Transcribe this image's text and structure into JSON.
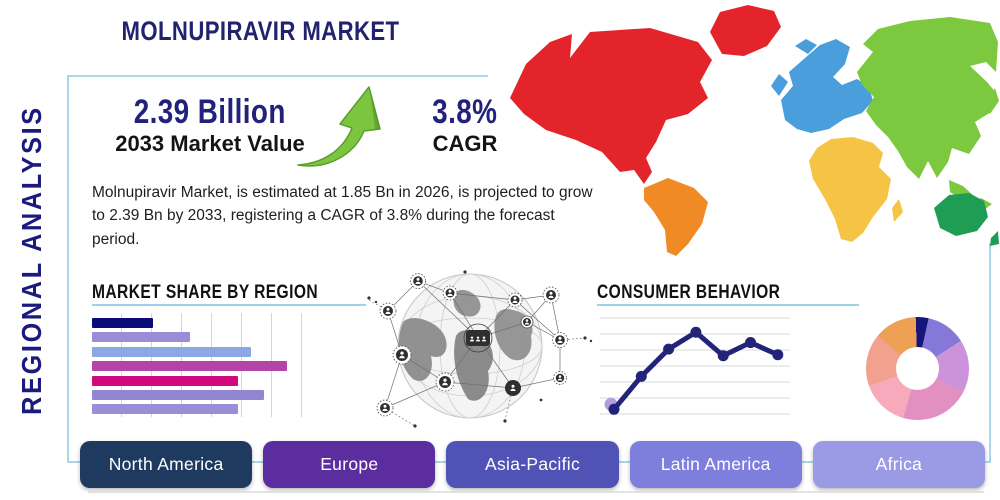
{
  "page": {
    "title": "MOLNUPIRAVIR MARKET",
    "side_title": "REGIONAL ANALYSIS"
  },
  "stats": {
    "market_value": "2.39 Billion",
    "market_value_label": "2033 Market Value",
    "cagr_value": "3.8%",
    "cagr_label": "CAGR",
    "arrow_color": "#7cc63f",
    "arrow_edge_color": "#5a9e2f"
  },
  "description": "Molnupiravir Market, is estimated at 1.85 Bn in 2026, is projected to grow to 2.39 Bn by 2033, registering a CAGR of 3.8% during the forecast period.",
  "sections": {
    "market_share": "MARKET SHARE BY REGION",
    "consumer_behavior": "CONSUMER BEHAVIOR"
  },
  "colors": {
    "title_navy": "#22226e",
    "stat_navy": "#22227d",
    "box_border": "#a9d7e8",
    "underline": "#9fd2e6"
  },
  "map": {
    "north_america": "#e3242b",
    "greenland": "#e3242b",
    "south_america": "#f08a24",
    "europe": "#4a9edb",
    "africa": "#f6c445",
    "asia": "#7cc83f",
    "oceania": "#1f9d54"
  },
  "buttons": [
    {
      "label": "North America",
      "color": "#1e3a5f"
    },
    {
      "label": "Europe",
      "color": "#5c2d9e"
    },
    {
      "label": "Asia-Pacific",
      "color": "#5053b5"
    },
    {
      "label": "Latin America",
      "color": "#7e7fdd"
    },
    {
      "label": "Africa",
      "color": "#9a9be4"
    }
  ],
  "chart_data": [
    {
      "type": "bar",
      "title": "MARKET SHARE BY REGION",
      "orientation": "horizontal",
      "categories": [
        "",
        "",
        "",
        "",
        "",
        "",
        ""
      ],
      "values": [
        29,
        46,
        75,
        92,
        69,
        81,
        69
      ],
      "value_unit": "relative share (0-100, est. from bar lengths)",
      "colors": [
        "#0a0a78",
        "#9b8cd8",
        "#8ca8e4",
        "#b544a8",
        "#d00a7c",
        "#9186d2",
        "#9a8ed8"
      ],
      "grid": true,
      "xlabel": "",
      "ylabel": ""
    },
    {
      "type": "line",
      "title": "CONSUMER BEHAVIOR",
      "x": [
        1,
        2,
        3,
        4,
        5,
        6,
        7
      ],
      "values": [
        5,
        40,
        69,
        87,
        62,
        76,
        63
      ],
      "value_unit": "relative level (0-100, est. from plot)",
      "color": "#23237a",
      "highlight_color": "#b49ddb",
      "grid": true,
      "xlabel": "",
      "ylabel": ""
    },
    {
      "type": "pie",
      "donut": true,
      "title": "",
      "slices": [
        {
          "value": 4,
          "color": "#16167a"
        },
        {
          "value": 12.5,
          "color": "#8678d8"
        },
        {
          "value": 16.5,
          "color": "#cb93da"
        },
        {
          "value": 22,
          "color": "#e28fc2"
        },
        {
          "value": 15,
          "color": "#f6aabc"
        },
        {
          "value": 16.5,
          "color": "#f3a18f"
        },
        {
          "value": 13.5,
          "color": "#eea055"
        }
      ],
      "value_unit": "percent (est. from arc angles)"
    }
  ]
}
